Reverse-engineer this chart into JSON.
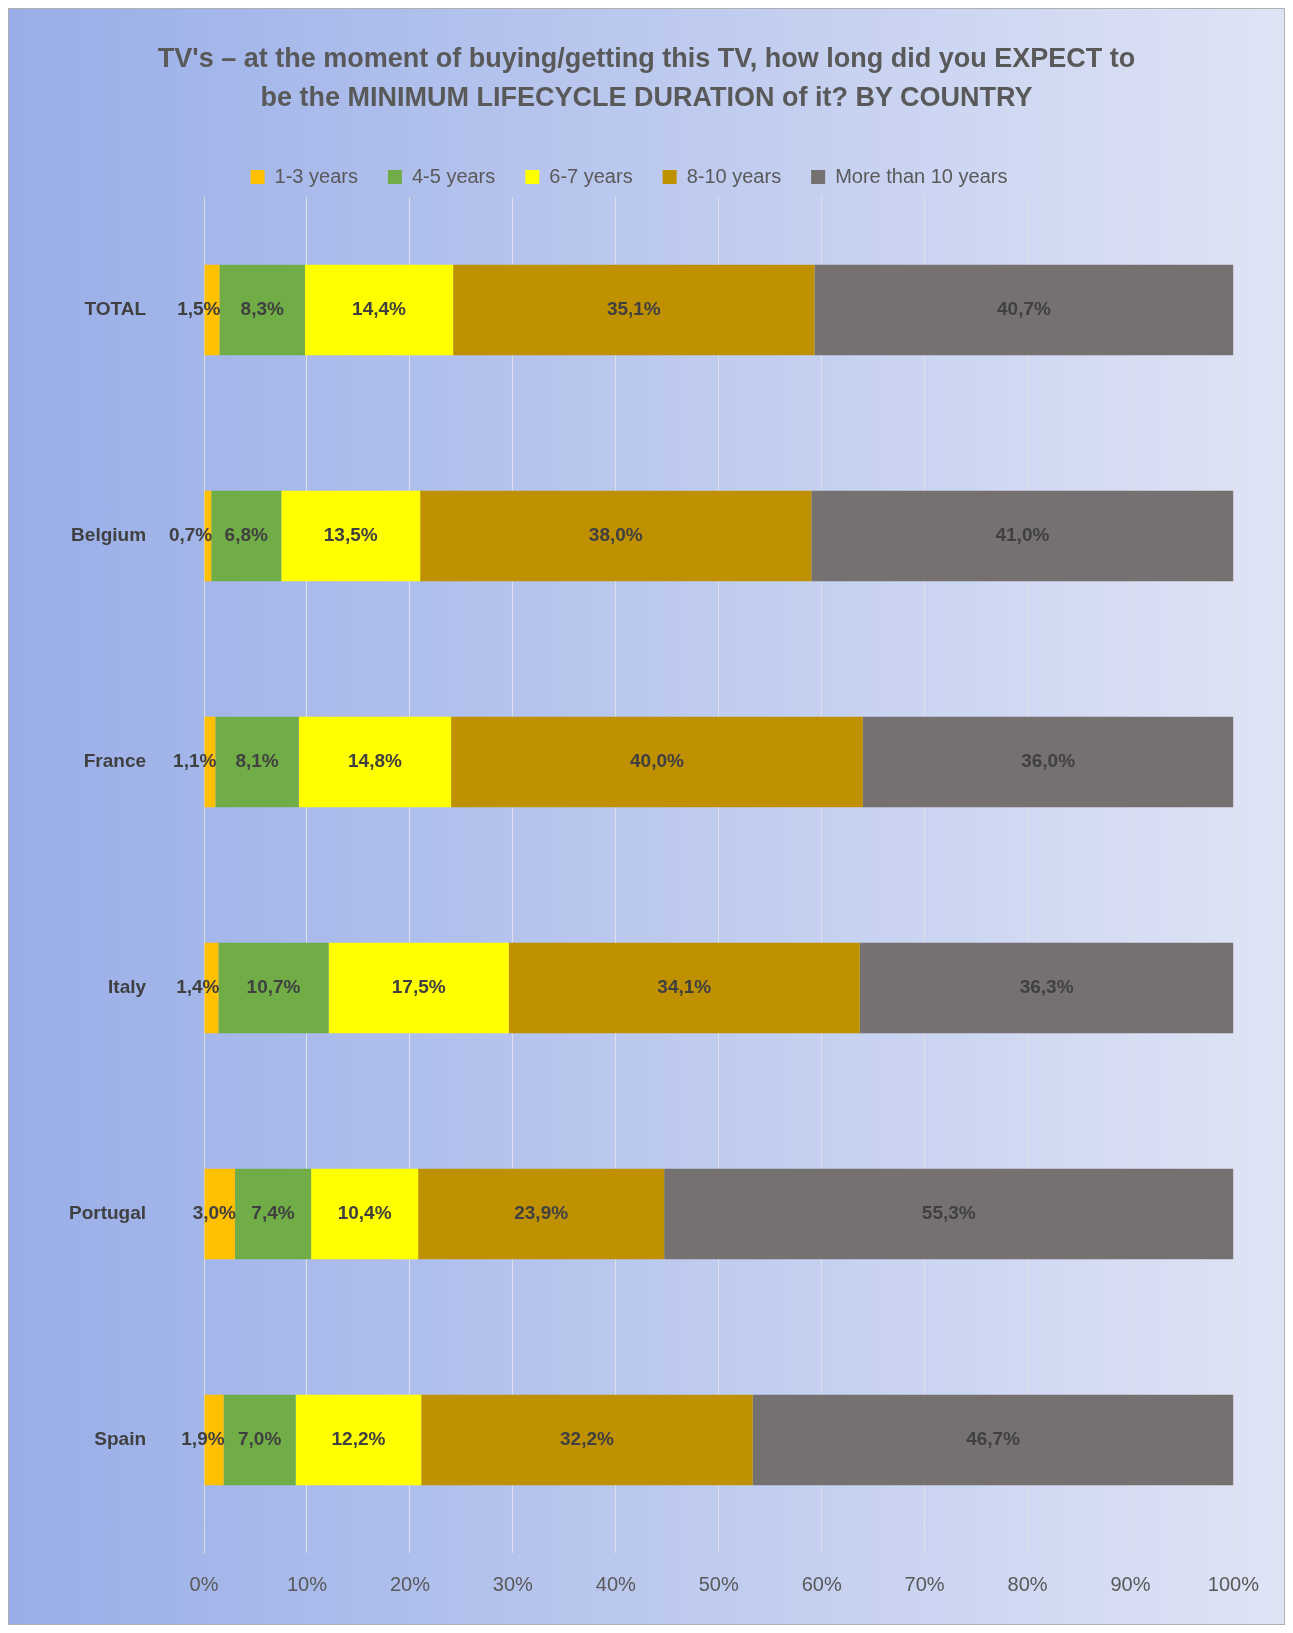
{
  "chart_data": {
    "type": "bar",
    "orientation": "horizontal",
    "stacked": true,
    "title": "TV's – at the moment of buying/getting this TV, how long did you EXPECT to be the MINIMUM LIFECYCLE DURATION of it? BY COUNTRY",
    "categories": [
      "TOTAL",
      "Belgium",
      "France",
      "Italy",
      "Portugal",
      "Spain"
    ],
    "series": [
      {
        "name": "1-3 years",
        "color": "#ffc000",
        "values": [
          1.5,
          0.7,
          1.1,
          1.4,
          3.0,
          1.9
        ],
        "value_labels": [
          "1,5%",
          "0,7%",
          "1,1%",
          "1,4%",
          "3,0%",
          "1,9%"
        ]
      },
      {
        "name": "4-5 years",
        "color": "#70ad47",
        "values": [
          8.3,
          6.8,
          8.1,
          10.7,
          7.4,
          7.0
        ],
        "value_labels": [
          "8,3%",
          "6,8%",
          "8,1%",
          "10,7%",
          "7,4%",
          "7,0%"
        ]
      },
      {
        "name": "6-7 years",
        "color": "#ffff00",
        "values": [
          14.4,
          13.5,
          14.8,
          17.5,
          10.4,
          12.2
        ],
        "value_labels": [
          "14,4%",
          "13,5%",
          "14,8%",
          "17,5%",
          "10,4%",
          "12,2%"
        ]
      },
      {
        "name": "8-10 years",
        "color": "#bf9000",
        "values": [
          35.1,
          38.0,
          40.0,
          34.1,
          23.9,
          32.2
        ],
        "value_labels": [
          "35,1%",
          "38,0%",
          "40,0%",
          "34,1%",
          "23,9%",
          "32,2%"
        ]
      },
      {
        "name": "More than 10 years",
        "color": "#767171",
        "values": [
          40.7,
          41.0,
          36.0,
          36.3,
          55.3,
          46.7
        ],
        "value_labels": [
          "40,7%",
          "41,0%",
          "36,0%",
          "36,3%",
          "55,3%",
          "46,7%"
        ]
      }
    ],
    "xlim": [
      0,
      100
    ],
    "xticks": [
      {
        "value": 0,
        "label": "0%"
      },
      {
        "value": 10,
        "label": "10%"
      },
      {
        "value": 20,
        "label": "20%"
      },
      {
        "value": 30,
        "label": "30%"
      },
      {
        "value": 40,
        "label": "40%"
      },
      {
        "value": 50,
        "label": "50%"
      },
      {
        "value": 60,
        "label": "60%"
      },
      {
        "value": 70,
        "label": "70%"
      },
      {
        "value": 80,
        "label": "80%"
      },
      {
        "value": 90,
        "label": "90%"
      },
      {
        "value": 100,
        "label": "100%"
      }
    ],
    "grid": "x",
    "legend": "top"
  }
}
